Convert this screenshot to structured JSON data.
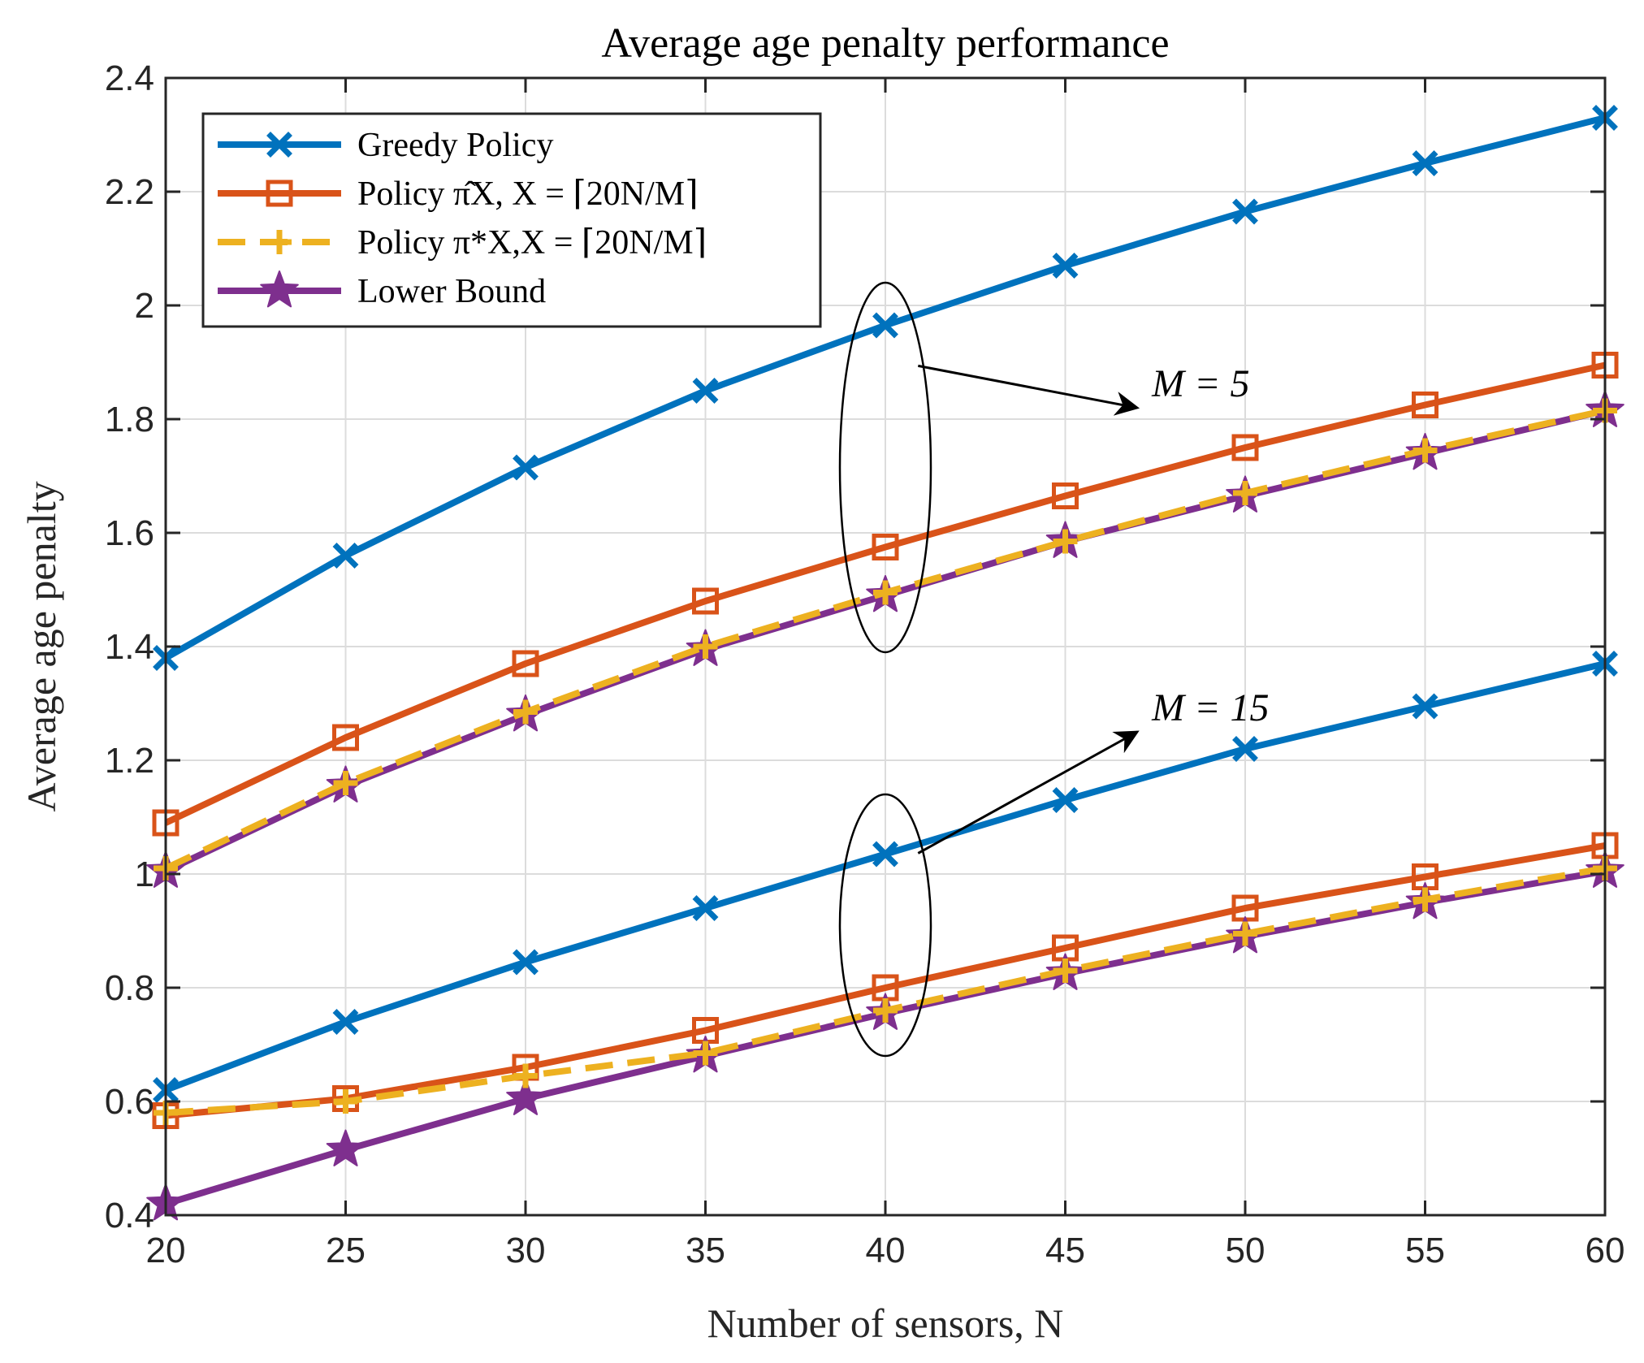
{
  "chart_data": {
    "type": "line",
    "title": "Average age penalty performance",
    "xlabel": "Number of sensors, N",
    "ylabel": "Average age penalty",
    "x": [
      20,
      25,
      30,
      35,
      40,
      45,
      50,
      55,
      60
    ],
    "xlim": [
      20,
      60
    ],
    "ylim": [
      0.4,
      2.4
    ],
    "xticks": [
      "20",
      "25",
      "30",
      "35",
      "40",
      "45",
      "50",
      "55",
      "60"
    ],
    "yticks": [
      "0.4",
      "0.6",
      "0.8",
      "1",
      "1.2",
      "1.4",
      "1.6",
      "1.8",
      "2",
      "2.2",
      "2.4"
    ],
    "grid": true,
    "legend_position": "top-left",
    "legend": [
      {
        "label": "Greedy Policy",
        "color": "#0072BD",
        "marker": "x",
        "dash": false
      },
      {
        "label": "Policy π̂X, X = ⌈20N/M⌉",
        "color": "#D95319",
        "marker": "square",
        "dash": false
      },
      {
        "label": "Policy π*X,X = ⌈20N/M⌉",
        "color": "#EDB120",
        "marker": "plus",
        "dash": true
      },
      {
        "label": "Lower Bound",
        "color": "#7E2F8E",
        "marker": "star",
        "dash": false
      }
    ],
    "series": [
      {
        "name": "Greedy Policy, M = 5",
        "legend_index": 0,
        "values": [
          1.38,
          1.56,
          1.715,
          1.85,
          1.965,
          2.07,
          2.165,
          2.25,
          2.33
        ]
      },
      {
        "name": "Policy π̂X, M = 5",
        "legend_index": 1,
        "values": [
          1.09,
          1.24,
          1.37,
          1.48,
          1.575,
          1.665,
          1.75,
          1.825,
          1.895
        ]
      },
      {
        "name": "Lower Bound, M = 5",
        "legend_index": 3,
        "values": [
          1.005,
          1.155,
          1.28,
          1.395,
          1.49,
          1.585,
          1.665,
          1.74,
          1.815
        ]
      },
      {
        "name": "Policy π*X, M = 5",
        "legend_index": 2,
        "values": [
          1.01,
          1.16,
          1.285,
          1.4,
          1.495,
          1.585,
          1.67,
          1.745,
          1.815
        ]
      },
      {
        "name": "Greedy Policy, M = 15",
        "legend_index": 0,
        "values": [
          0.62,
          0.74,
          0.845,
          0.94,
          1.035,
          1.13,
          1.22,
          1.295,
          1.37
        ]
      },
      {
        "name": "Policy π̂X, M = 15",
        "legend_index": 1,
        "values": [
          0.575,
          0.605,
          0.66,
          0.725,
          0.8,
          0.87,
          0.94,
          0.995,
          1.05
        ]
      },
      {
        "name": "Lower Bound, M = 15",
        "legend_index": 3,
        "values": [
          0.42,
          0.515,
          0.605,
          0.68,
          0.755,
          0.825,
          0.89,
          0.95,
          1.005
        ]
      },
      {
        "name": "Policy π*X, M = 15",
        "legend_index": 2,
        "values": [
          0.58,
          0.6,
          0.645,
          0.685,
          0.76,
          0.83,
          0.895,
          0.955,
          1.01
        ]
      }
    ],
    "annotations": [
      {
        "text": "M = 5",
        "ellipse_x": 40,
        "ellipse_y": [
          1.39,
          2.04
        ],
        "arrow_to": [
          47,
          1.82
        ]
      },
      {
        "text": "M = 15",
        "ellipse_x": 40,
        "ellipse_y": [
          0.68,
          1.14
        ],
        "arrow_to": [
          47,
          1.25
        ]
      }
    ]
  }
}
